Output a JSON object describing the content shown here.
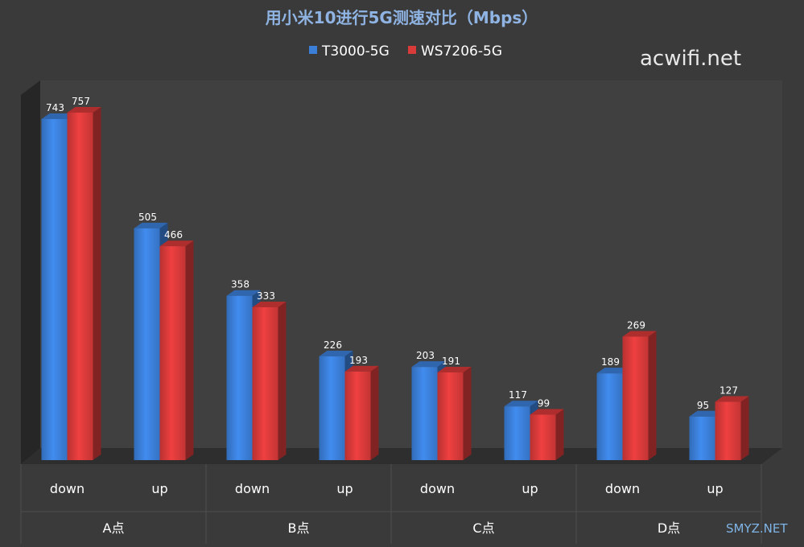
{
  "watermarks": {
    "top": "acwifi.net",
    "bottom": "SMYZ.NET"
  },
  "colors": {
    "background": "#3a3a3a",
    "plot_back": "#404040",
    "plot_side": "#262626",
    "floor": "#2e2e2e",
    "series_blue": "#3b7fd9",
    "series_red": "#d93a3a",
    "title": "#8fb4e3",
    "text": "#ffffff"
  },
  "chart_data": {
    "type": "bar",
    "title": "用小米10进行5G测速对比（Mbps）",
    "categories": [
      "down",
      "up",
      "down",
      "up",
      "down",
      "up",
      "down",
      "up"
    ],
    "groups": [
      "A点",
      "B点",
      "C点",
      "D点"
    ],
    "series": [
      {
        "name": "T3000-5G",
        "values": [
          743,
          505,
          358,
          226,
          203,
          117,
          189,
          95
        ]
      },
      {
        "name": "WS7206-5G",
        "values": [
          757,
          466,
          333,
          193,
          191,
          99,
          269,
          127
        ]
      }
    ],
    "ylim": [
      0,
      800
    ],
    "grid": false,
    "legend": "top"
  }
}
